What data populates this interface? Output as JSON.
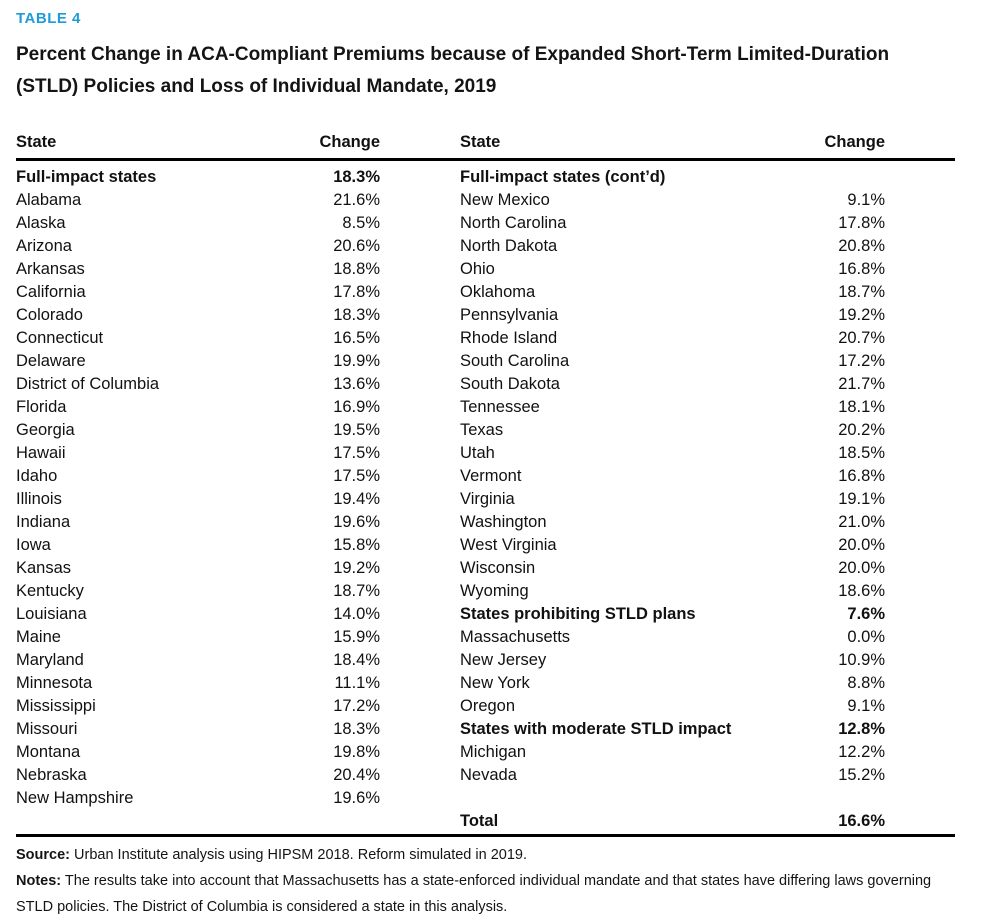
{
  "accent_color": "#1e9cd7",
  "table_label": "TABLE 4",
  "title": {
    "line1": "Percent Change in ACA-Compliant Premiums because of Expanded Short-Term Limited-Duration",
    "line2": "(STLD) Policies and Loss of Individual Mandate, 2019"
  },
  "columns": {
    "state": "State",
    "change": "Change"
  },
  "left_rows": [
    {
      "label": "Full-impact states",
      "value": "18.3%",
      "bold": true
    },
    {
      "label": "Alabama",
      "value": "21.6%"
    },
    {
      "label": "Alaska",
      "value": "8.5%"
    },
    {
      "label": "Arizona",
      "value": "20.6%"
    },
    {
      "label": "Arkansas",
      "value": "18.8%"
    },
    {
      "label": "California",
      "value": "17.8%"
    },
    {
      "label": "Colorado",
      "value": "18.3%"
    },
    {
      "label": "Connecticut",
      "value": "16.5%"
    },
    {
      "label": "Delaware",
      "value": "19.9%"
    },
    {
      "label": "District of Columbia",
      "value": "13.6%"
    },
    {
      "label": "Florida",
      "value": "16.9%"
    },
    {
      "label": "Georgia",
      "value": "19.5%"
    },
    {
      "label": "Hawaii",
      "value": "17.5%"
    },
    {
      "label": "Idaho",
      "value": "17.5%"
    },
    {
      "label": "Illinois",
      "value": "19.4%"
    },
    {
      "label": "Indiana",
      "value": "19.6%"
    },
    {
      "label": "Iowa",
      "value": "15.8%"
    },
    {
      "label": "Kansas",
      "value": "19.2%"
    },
    {
      "label": "Kentucky",
      "value": "18.7%"
    },
    {
      "label": "Louisiana",
      "value": "14.0%"
    },
    {
      "label": "Maine",
      "value": "15.9%"
    },
    {
      "label": "Maryland",
      "value": "18.4%"
    },
    {
      "label": "Minnesota",
      "value": "11.1%"
    },
    {
      "label": "Mississippi",
      "value": "17.2%"
    },
    {
      "label": "Missouri",
      "value": "18.3%"
    },
    {
      "label": "Montana",
      "value": "19.8%"
    },
    {
      "label": "Nebraska",
      "value": "20.4%"
    },
    {
      "label": "New Hampshire",
      "value": "19.6%"
    },
    {
      "label": "",
      "value": ""
    }
  ],
  "right_rows": [
    {
      "label": "Full-impact states (cont’d)",
      "value": "",
      "bold": true
    },
    {
      "label": "New Mexico",
      "value": "9.1%"
    },
    {
      "label": "North Carolina",
      "value": "17.8%"
    },
    {
      "label": "North Dakota",
      "value": "20.8%"
    },
    {
      "label": "Ohio",
      "value": "16.8%"
    },
    {
      "label": "Oklahoma",
      "value": "18.7%"
    },
    {
      "label": "Pennsylvania",
      "value": "19.2%"
    },
    {
      "label": "Rhode Island",
      "value": "20.7%"
    },
    {
      "label": "South Carolina",
      "value": "17.2%"
    },
    {
      "label": "South Dakota",
      "value": "21.7%"
    },
    {
      "label": "Tennessee",
      "value": "18.1%"
    },
    {
      "label": "Texas",
      "value": "20.2%"
    },
    {
      "label": "Utah",
      "value": "18.5%"
    },
    {
      "label": "Vermont",
      "value": "16.8%"
    },
    {
      "label": "Virginia",
      "value": "19.1%"
    },
    {
      "label": "Washington",
      "value": "21.0%"
    },
    {
      "label": "West Virginia",
      "value": "20.0%"
    },
    {
      "label": "Wisconsin",
      "value": "20.0%"
    },
    {
      "label": "Wyoming",
      "value": "18.6%"
    },
    {
      "label": "States prohibiting STLD plans",
      "value": "7.6%",
      "bold": true
    },
    {
      "label": "Massachusetts",
      "value": "0.0%"
    },
    {
      "label": "New Jersey",
      "value": "10.9%"
    },
    {
      "label": "New York",
      "value": "8.8%"
    },
    {
      "label": "Oregon",
      "value": "9.1%"
    },
    {
      "label": "States with moderate STLD impact",
      "value": "12.8%",
      "bold": true
    },
    {
      "label": "Michigan",
      "value": "12.2%"
    },
    {
      "label": "Nevada",
      "value": "15.2%"
    },
    {
      "label": "",
      "value": ""
    },
    {
      "label": "Total",
      "value": "16.6%",
      "bold": true
    }
  ],
  "footer": {
    "source_label": "Source:",
    "source_text": "Urban Institute analysis using HIPSM 2018. Reform simulated in 2019.",
    "notes_label": "Notes:",
    "notes_text": "The results take into account that Massachusetts has a state-enforced individual mandate and that states have differing laws governing STLD policies. The District of Columbia is considered a state in this analysis."
  }
}
